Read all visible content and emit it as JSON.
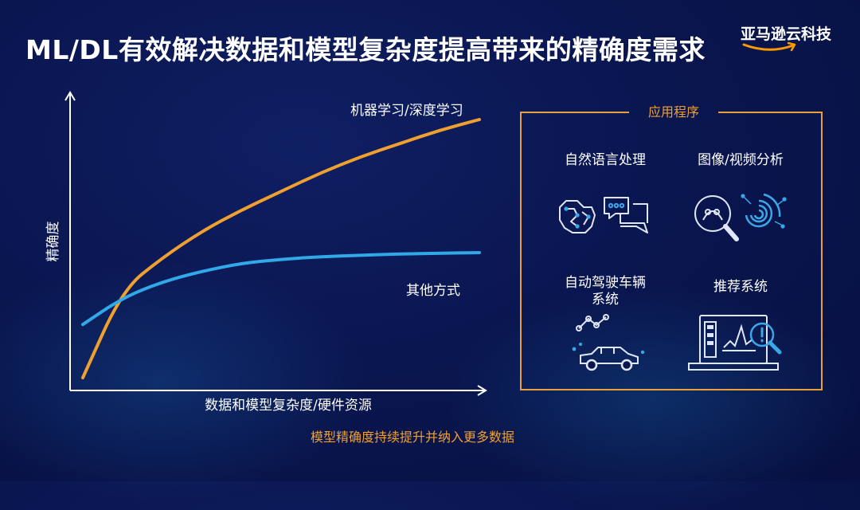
{
  "title": "ML/DL有效解决数据和模型复杂度提高带来的精确度需求",
  "brand": {
    "name": "亚马逊云科技",
    "accent_color": "#ff9900"
  },
  "chart_data": {
    "type": "line",
    "xlabel": "数据和模型复杂度/硬件资源",
    "ylabel": "精确度",
    "x_ticks": [],
    "y_ticks": [],
    "grid": false,
    "series": [
      {
        "name": "机器学习/深度学习",
        "color": "#f0a030",
        "shape": "concave-steep",
        "x": [
          0.0,
          0.1,
          0.2,
          0.3,
          0.4,
          0.5,
          0.6,
          0.7,
          0.8,
          0.9,
          1.0
        ],
        "y": [
          0.0,
          0.33,
          0.45,
          0.55,
          0.63,
          0.7,
          0.77,
          0.83,
          0.88,
          0.93,
          0.97
        ]
      },
      {
        "name": "其他方式",
        "color": "#31a8e8",
        "shape": "concave-saturating",
        "x": [
          0.0,
          0.1,
          0.2,
          0.3,
          0.4,
          0.5,
          0.6,
          0.7,
          0.8,
          0.9,
          1.0
        ],
        "y": [
          0.2,
          0.3,
          0.36,
          0.4,
          0.43,
          0.445,
          0.455,
          0.46,
          0.465,
          0.468,
          0.47
        ]
      }
    ]
  },
  "applications": {
    "title": "应用程序",
    "items": [
      {
        "label": "自然语言处理",
        "icon": "brain-chat-icon"
      },
      {
        "label": "图像/视频分析",
        "icon": "face-scan-fingerprint-icon"
      },
      {
        "label": "自动驾驶车辆\n系统",
        "icon": "car-route-icon"
      },
      {
        "label": "推荐系统",
        "icon": "laptop-analytics-icon"
      }
    ]
  },
  "footnote": "模型精确度持续提升并纳入更多数据"
}
